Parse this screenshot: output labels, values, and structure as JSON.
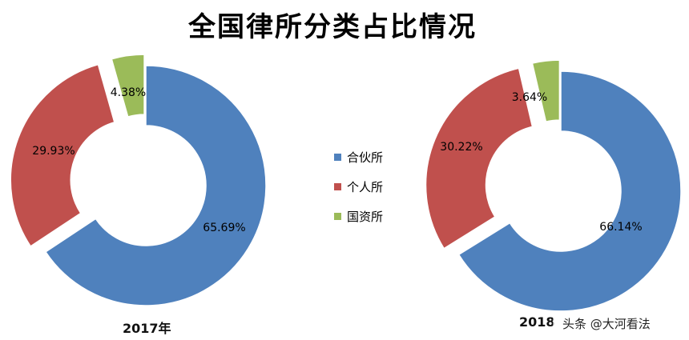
{
  "title": "全国律所分类占比情况",
  "legend": [
    {
      "label": "合伙所",
      "color": "#4F81BD"
    },
    {
      "label": "个人所",
      "color": "#C0504D"
    },
    {
      "label": "国资所",
      "color": "#9BBB59"
    }
  ],
  "chart_data": [
    {
      "type": "pie",
      "variant": "donut",
      "label": "2017年",
      "categories": [
        "合伙所",
        "个人所",
        "国资所"
      ],
      "values": [
        65.69,
        29.93,
        4.38
      ],
      "value_labels": [
        "65.69%",
        "29.93%",
        "4.38%"
      ],
      "colors": [
        "#4F81BD",
        "#C0504D",
        "#9BBB59"
      ]
    },
    {
      "type": "pie",
      "variant": "donut",
      "label": "2018",
      "categories": [
        "合伙所",
        "个人所",
        "国资所"
      ],
      "values": [
        66.14,
        30.22,
        3.64
      ],
      "value_labels": [
        "66.14%",
        "30.22%",
        "3.64%"
      ],
      "colors": [
        "#4F81BD",
        "#C0504D",
        "#9BBB59"
      ]
    }
  ],
  "watermark": "头条 @大河看法"
}
